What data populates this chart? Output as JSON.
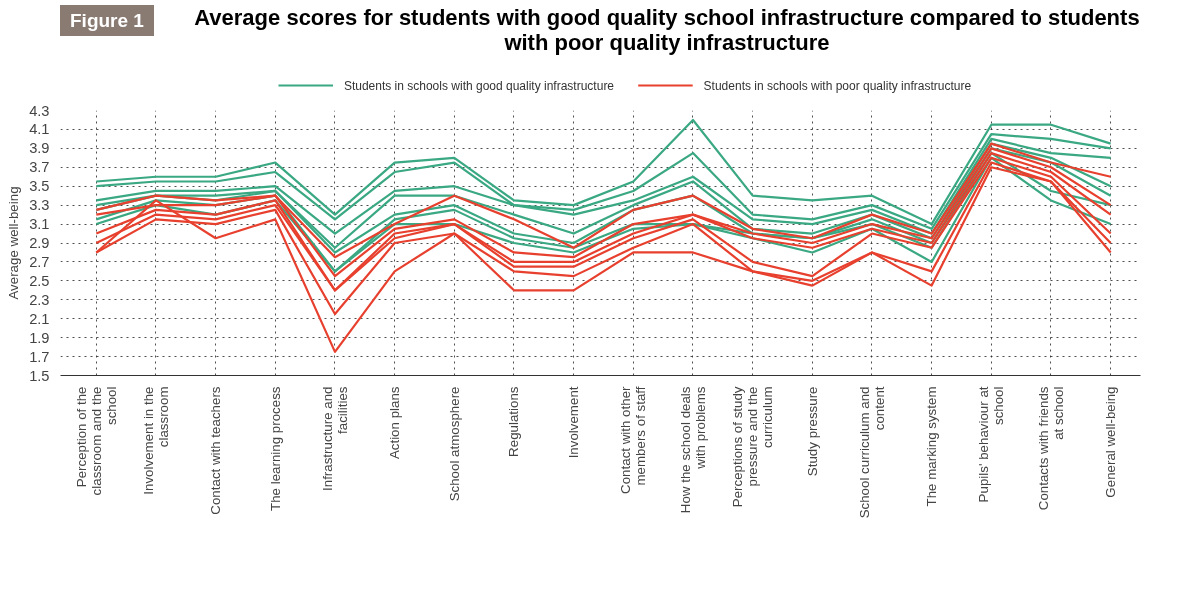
{
  "chart_data": {
    "type": "line",
    "title": "Average scores for students with good quality school infrastructure compared to students with poor quality infrastructure",
    "annotations": [
      "Figure 1"
    ],
    "ylabel": "Average well-being",
    "categories": [
      "Perception of the classroom and the school",
      "Involvement in the classroom",
      "Contact with teachers",
      "The learning process",
      "Infrastructure and facilities",
      "Action plans",
      "School atmosphere",
      "Regulations",
      "Involvement",
      "Contact with other members of staff",
      "How the school deals with problems",
      "Perceptions of study pressure and the curriculum",
      "Study pressure",
      "School curriculum and content",
      "The marking system",
      "Pupils' behaviour at school",
      "Contacts with friends at school",
      "General well-being"
    ],
    "ylim": [
      1.5,
      4.3
    ],
    "yticks": [
      1.5,
      1.7,
      1.9,
      2.1,
      2.3,
      2.5,
      2.7,
      2.9,
      3.1,
      3.3,
      3.5,
      3.7,
      3.9,
      4.1,
      4.3
    ],
    "grid": true,
    "legend": "top",
    "line_style": "solid",
    "series": [
      {
        "name": "Students in schools with good quality infrastructure",
        "color": "#3aa882",
        "values": [
          3.55,
          3.6,
          3.6,
          3.75,
          3.2,
          3.75,
          3.8,
          3.35,
          3.3,
          3.55,
          4.2,
          3.4,
          3.35,
          3.4,
          3.1,
          4.15,
          4.15,
          3.95
        ]
      },
      {
        "color": "#3aa882",
        "values": [
          3.5,
          3.55,
          3.55,
          3.65,
          3.15,
          3.65,
          3.75,
          3.3,
          3.25,
          3.45,
          3.85,
          3.2,
          3.15,
          3.3,
          3.05,
          4.05,
          4.0,
          3.9
        ]
      },
      {
        "color": "#3aa882",
        "values": [
          3.35,
          3.45,
          3.45,
          3.5,
          3.0,
          3.45,
          3.5,
          3.3,
          3.2,
          3.35,
          3.6,
          3.15,
          3.1,
          3.25,
          3.0,
          4.0,
          3.85,
          3.8
        ]
      },
      {
        "color": "#3aa882",
        "values": [
          3.3,
          3.4,
          3.4,
          3.45,
          2.85,
          3.4,
          3.4,
          3.2,
          3.0,
          3.3,
          3.55,
          3.05,
          3.0,
          3.2,
          2.95,
          3.95,
          3.8,
          3.5
        ]
      },
      {
        "color": "#3aa882",
        "values": [
          3.25,
          3.4,
          3.35,
          3.45,
          2.8,
          3.2,
          3.3,
          3.0,
          2.9,
          3.25,
          3.4,
          3.0,
          2.95,
          3.15,
          2.9,
          3.9,
          3.75,
          3.4
        ]
      },
      {
        "color": "#3aa882",
        "values": [
          3.15,
          3.35,
          3.3,
          3.4,
          2.6,
          3.15,
          3.25,
          2.95,
          2.85,
          3.1,
          3.1,
          3.0,
          2.95,
          3.1,
          2.85,
          3.85,
          3.45,
          3.3
        ]
      },
      {
        "color": "#3aa882",
        "values": [
          3.1,
          3.3,
          3.2,
          3.35,
          2.6,
          3.1,
          3.1,
          2.9,
          2.8,
          3.05,
          3.1,
          2.95,
          2.8,
          3.05,
          2.7,
          3.8,
          3.35,
          3.1
        ]
      },
      {
        "name": "Students in schools with poor quality infrastructure",
        "color": "#e8402e",
        "values": [
          3.25,
          3.4,
          3.35,
          3.4,
          2.75,
          3.1,
          3.4,
          3.15,
          2.85,
          3.25,
          3.4,
          3.05,
          2.95,
          3.2,
          3.0,
          3.95,
          3.75,
          3.6
        ]
      },
      {
        "color": "#e8402e",
        "values": [
          3.2,
          3.3,
          3.3,
          3.4,
          2.55,
          3.05,
          3.15,
          2.8,
          2.75,
          3.1,
          3.2,
          3.0,
          2.9,
          3.1,
          2.95,
          3.9,
          3.7,
          3.3
        ]
      },
      {
        "color": "#e8402e",
        "values": [
          3.0,
          3.25,
          3.2,
          3.35,
          2.4,
          3.0,
          3.1,
          2.7,
          2.7,
          3.0,
          3.2,
          2.95,
          2.85,
          3.05,
          2.9,
          3.85,
          3.65,
          3.2
        ]
      },
      {
        "color": "#e8402e",
        "values": [
          2.9,
          3.2,
          3.15,
          3.3,
          2.4,
          2.95,
          3.1,
          2.65,
          2.65,
          2.95,
          3.15,
          2.7,
          2.55,
          3.0,
          2.85,
          3.8,
          3.6,
          3.0
        ]
      },
      {
        "color": "#e8402e",
        "values": [
          2.8,
          3.15,
          3.1,
          3.25,
          2.15,
          2.9,
          3.0,
          2.6,
          2.55,
          2.85,
          3.1,
          2.6,
          2.5,
          2.8,
          2.6,
          3.75,
          3.55,
          2.9
        ]
      },
      {
        "color": "#e8402e",
        "values": [
          2.8,
          3.35,
          2.95,
          3.15,
          1.75,
          2.6,
          3.0,
          2.4,
          2.4,
          2.8,
          2.8,
          2.6,
          2.45,
          2.8,
          2.45,
          3.7,
          3.55,
          2.8
        ]
      }
    ]
  }
}
